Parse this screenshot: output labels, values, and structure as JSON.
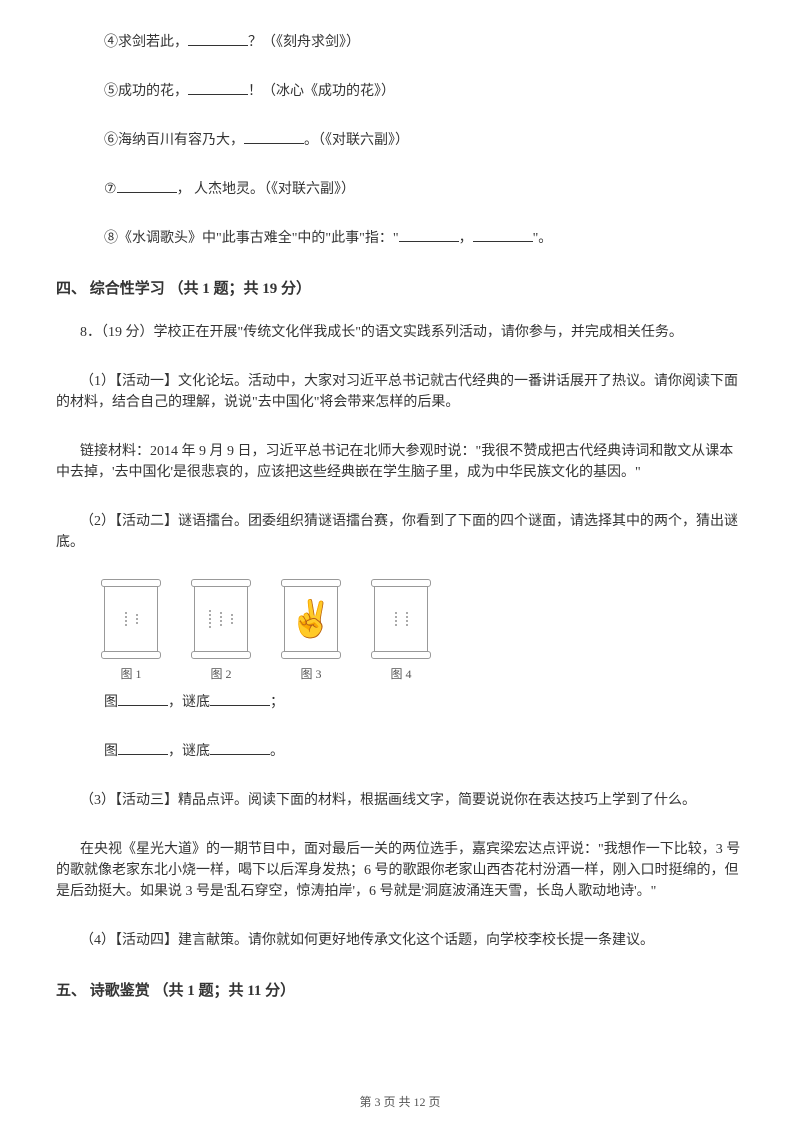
{
  "q4": {
    "prefix": "④求剑若此，",
    "suffix": "？（《刻舟求剑》）"
  },
  "q5": {
    "prefix": "⑤成功的花，",
    "suffix": "！（冰心《成功的花》）"
  },
  "q6": {
    "prefix": "⑥海纳百川有容乃大，",
    "suffix": "。（《对联六副》）"
  },
  "q7": {
    "prefix": "⑦",
    "suffix": "， 人杰地灵。（《对联六副》）"
  },
  "q8": {
    "prefix": "⑧《水调歌头》中\"此事古难全\"中的\"此事\"指：\"",
    "mid": "，",
    "suffix": "\"。"
  },
  "section4": "四、 综合性学习 （共 1 题；共 19 分）",
  "p8_intro": "8．（19 分）学校正在开展\"传统文化伴我成长\"的语文实践系列活动，请你参与，并完成相关任务。",
  "act1": "（1）【活动一】文化论坛。活动中，大家对习近平总书记就古代经典的一番讲话展开了热议。请你阅读下面的材料，结合自己的理解，说说\"去中国化\"将会带来怎样的后果。",
  "link": "链接材料：2014 年 9 月 9 日，习近平总书记在北师大参观时说：\"我很不赞成把古代经典诗词和散文从课本中去掉，'去中国化'是很悲哀的，应该把这些经典嵌在学生脑子里，成为中华民族文化的基因。\"",
  "act2": "（2）【活动二】谜语擂台。团委组织猜谜语擂台赛，你看到了下面的四个谜面，请选择其中的两个，猜出谜底。",
  "captions": [
    "图 1",
    "图 2",
    "图 3",
    "图 4"
  ],
  "answer_line1_a": "图",
  "answer_line1_b": "，谜底",
  "answer_line1_c": "；",
  "answer_line2_a": "图",
  "answer_line2_b": "，谜底",
  "answer_line2_c": "。",
  "act3": "（3）【活动三】精品点评。阅读下面的材料，根据画线文字，简要说说你在表达技巧上学到了什么。",
  "act3_body": "在央视《星光大道》的一期节目中，面对最后一关的两位选手，嘉宾梁宏达点评说：\"我想作一下比较，3 号的歌就像老家东北小烧一样，喝下以后浑身发热；6 号的歌跟你老家山西杏花村汾酒一样，刚入口时挺绵的，但是后劲挺大。如果说 3 号是'乱石穿空，惊涛拍岸'，6 号就是'洞庭波涌连天雪，长岛人歌动地诗'。\"",
  "act4": "（4）【活动四】建言献策。请你就如何更好地传承文化这个话题，向学校李校长提一条建议。",
  "section5": "五、 诗歌鉴赏 （共 1 题；共 11 分）",
  "footer": "第 3 页 共 12 页",
  "colors": {
    "text": "#333333",
    "bg": "#ffffff"
  }
}
